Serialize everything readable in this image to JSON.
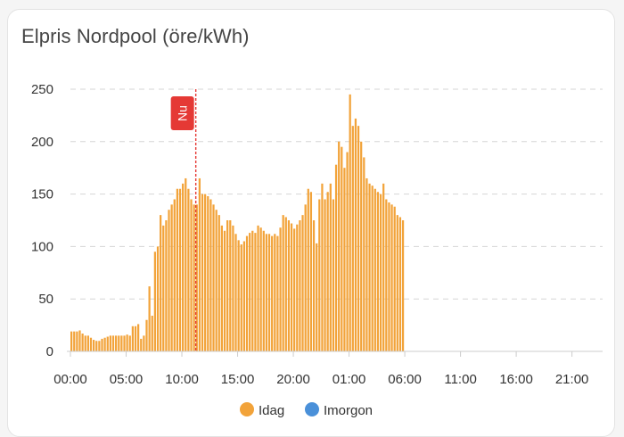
{
  "card": {
    "title": "Elpris Nordpool (öre/kWh)"
  },
  "chart_data": {
    "type": "bar",
    "ylim": [
      0,
      250
    ],
    "yticks": [
      "0",
      "50",
      "100",
      "150",
      "200",
      "250"
    ],
    "xticks": [
      "00:00",
      "05:00",
      "10:00",
      "15:00",
      "20:00",
      "01:00",
      "06:00",
      "11:00",
      "16:00",
      "21:00"
    ],
    "x_range_hours": [
      0,
      48
    ],
    "bars_per_hour": 4,
    "grid": true,
    "legend_position": "bottom",
    "now_marker": {
      "label": "Nu",
      "hour": 11.25,
      "color": "#e53935"
    },
    "series": [
      {
        "name": "Idag",
        "color": "#f2a33a",
        "values": [
          19,
          19,
          19,
          20,
          17,
          15,
          15,
          13,
          11,
          10,
          10,
          12,
          13,
          14,
          15,
          15,
          15,
          15,
          15,
          15,
          16,
          15,
          24,
          24,
          26,
          12,
          15,
          30,
          62,
          34,
          95,
          100,
          130,
          120,
          125,
          135,
          140,
          145,
          155,
          155,
          160,
          165,
          155,
          145,
          140,
          140,
          165,
          150,
          150,
          148,
          145,
          140,
          135,
          130,
          120,
          115,
          125,
          125,
          120,
          112,
          106,
          102,
          105,
          110,
          113,
          115,
          113,
          120,
          118,
          115,
          112,
          112,
          110,
          112,
          110,
          118,
          130,
          128,
          125,
          122,
          117,
          121,
          125,
          130,
          140,
          155,
          152,
          125,
          103,
          145,
          160,
          145,
          152,
          160,
          145,
          178,
          200,
          195,
          175,
          190,
          245,
          215,
          222,
          215,
          200,
          185,
          165,
          160,
          158,
          155,
          152,
          150,
          160,
          145,
          142,
          140,
          138,
          130,
          128,
          125
        ]
      },
      {
        "name": "Imorgon",
        "color": "#4a90d9",
        "values": []
      }
    ]
  }
}
